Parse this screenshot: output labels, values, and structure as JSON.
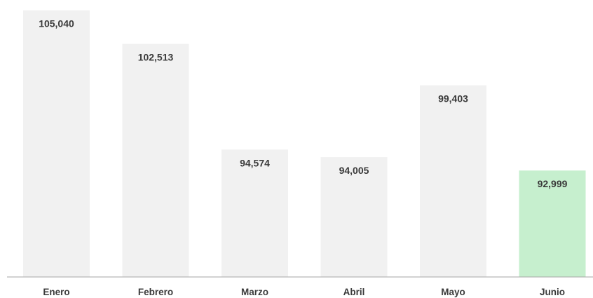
{
  "chart_data": {
    "type": "bar",
    "title": "",
    "xlabel": "",
    "ylabel": "",
    "categories": [
      "Enero",
      "Febrero",
      "Marzo",
      "Abril",
      "Mayo",
      "Junio"
    ],
    "values": [
      105040,
      102513,
      94574,
      94005,
      99403,
      92999
    ],
    "value_labels": [
      "105,040",
      "102,513",
      "94,574",
      "94,005",
      "99,403",
      "92,999"
    ],
    "ylim": [
      85000,
      105500
    ],
    "grid": false,
    "legend": "none",
    "highlight_index": 5,
    "colors": {
      "bar": "#f1f1f1",
      "highlight": "#c6efce",
      "axis": "#a6a6a6",
      "text": "#3a3a3a"
    }
  }
}
